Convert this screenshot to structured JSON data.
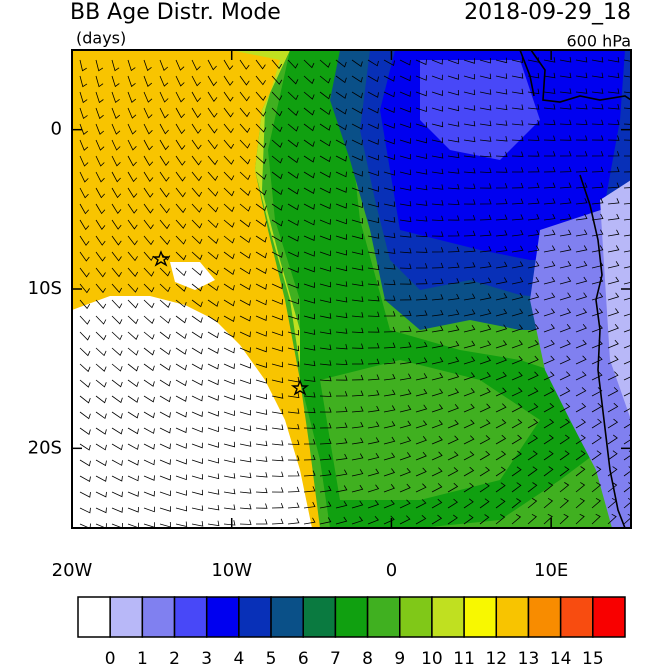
{
  "header": {
    "title": "BB Age Distr. Mode",
    "units": "(days)",
    "date": "2018-09-29_18",
    "level": "600 hPa"
  },
  "map": {
    "xlim": [
      -20,
      15
    ],
    "ylim": [
      -25,
      5
    ],
    "xticks": [
      {
        "value": -20,
        "label": "20W"
      },
      {
        "value": -10,
        "label": "10W"
      },
      0,
      {
        "value": 10,
        "label": "10E"
      }
    ],
    "yticks": [
      0,
      {
        "value": -10,
        "label": "10S"
      },
      {
        "value": -20,
        "label": "20S"
      }
    ]
  },
  "colorbar": {
    "levels": [
      0,
      1,
      2,
      3,
      4,
      5,
      6,
      7,
      8,
      9,
      10,
      11,
      12,
      13,
      14,
      15
    ],
    "colors": [
      "#ffffff",
      "#b8b8f8",
      "#8080f0",
      "#4848f8",
      "#0000f0",
      "#0830b8",
      "#0a5088",
      "#0a7a40",
      "#10a010",
      "#40b020",
      "#80c818",
      "#c0e020",
      "#f8f800",
      "#f8c400",
      "#f88c00",
      "#f84c10",
      "#f80000"
    ]
  }
}
